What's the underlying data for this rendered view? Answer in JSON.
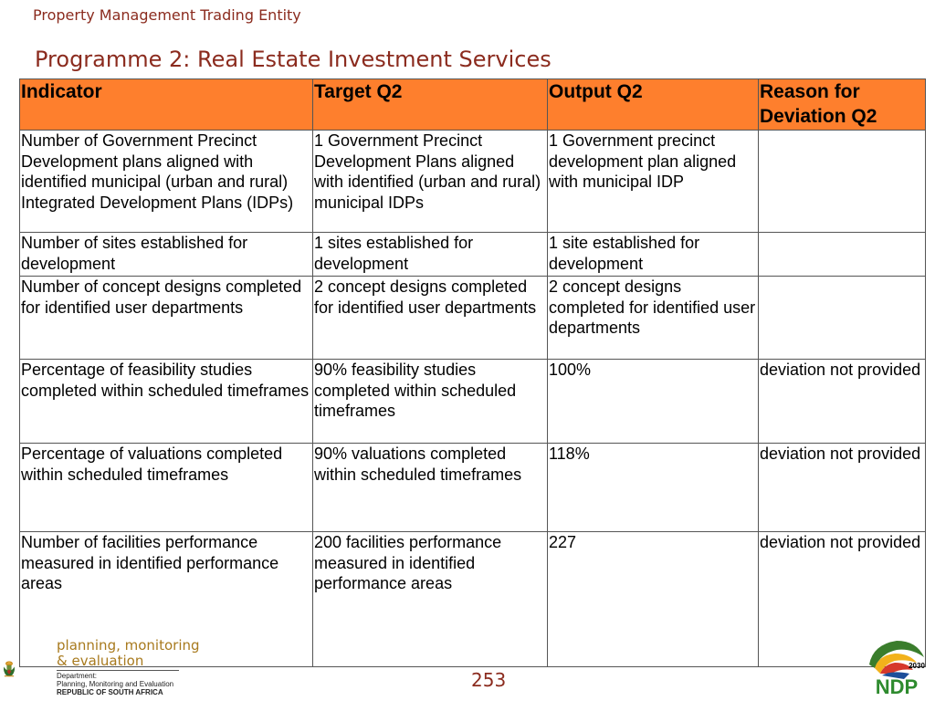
{
  "header": {
    "entity": "Property Management Trading Entity",
    "programme": "Programme 2: Real Estate Investment Services"
  },
  "table": {
    "headers": [
      "Indicator",
      "Target Q2",
      "Output Q2",
      "Reason for Deviation Q2"
    ],
    "rows": [
      [
        "Number of Government Precinct Development plans aligned with identified municipal (urban and rural) Integrated Development Plans (IDPs)",
        "1 Government Precinct Development Plans aligned with identified (urban and rural) municipal IDPs",
        "1 Government precinct development plan aligned with municipal IDP",
        ""
      ],
      [
        "Number of sites established for development",
        "1 sites established for development",
        "1 site established for development",
        ""
      ],
      [
        "Number of concept designs completed for identified user departments",
        "2 concept designs completed for identified user departments",
        "2 concept designs completed for identified user departments",
        ""
      ],
      [
        "Percentage of feasibility studies completed within scheduled timeframes",
        "90% feasibility studies completed within scheduled timeframes",
        "100%",
        "deviation not provided"
      ],
      [
        "Percentage of valuations completed within scheduled timeframes",
        "90% valuations completed within scheduled timeframes",
        "118%",
        "deviation not provided"
      ],
      [
        "Number of facilities performance measured in identified performance areas",
        "200 facilities performance measured in identified performance areas",
        "227",
        "deviation not provided"
      ]
    ]
  },
  "footer": {
    "page_number": "253",
    "pme_line1": "planning, monitoring",
    "pme_line2": "& evaluation",
    "dept_line1": "Department:",
    "dept_line2": "Planning, Monitoring and Evaluation",
    "dept_line3": "REPUBLIC OF SOUTH AFRICA",
    "ndp_text": "NDP",
    "ndp_year": "2030",
    "header_color": "#fe7f2d",
    "title_color": "#8b2b1e"
  }
}
